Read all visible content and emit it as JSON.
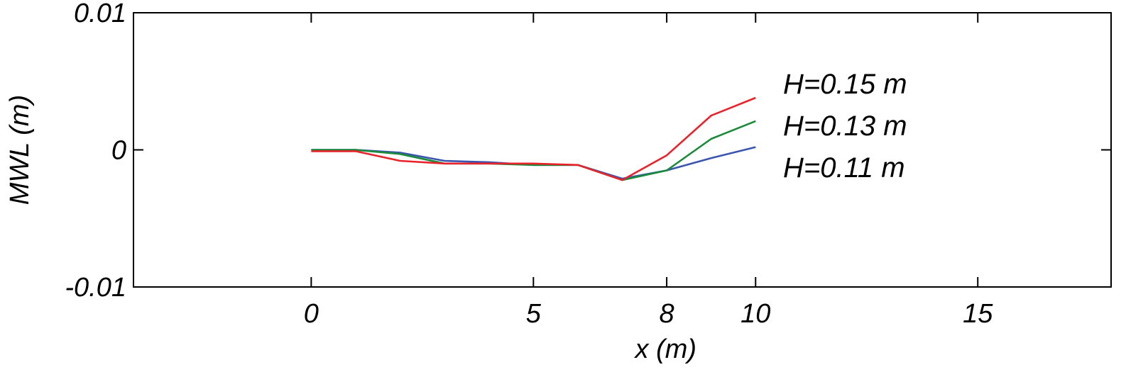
{
  "chart_data": {
    "type": "line",
    "title": "",
    "xlabel": "x (m)",
    "ylabel": "MWL (m)",
    "xlim": [
      -4,
      18
    ],
    "ylim": [
      -0.01,
      0.01
    ],
    "xticks": [
      0,
      5,
      8,
      10,
      15
    ],
    "xtick_labels": [
      "0",
      "5",
      "8",
      "10",
      "15"
    ],
    "yticks": [
      -0.01,
      0,
      0.01
    ],
    "ytick_labels": [
      "-0.01",
      "0",
      "0.01"
    ],
    "grid": false,
    "legend_placement": "right, inside plot",
    "series": [
      {
        "name": "H=0.15 m",
        "color": "#e8232a",
        "x": [
          0,
          1,
          2,
          3,
          4,
          5,
          6,
          7,
          8,
          9,
          10
        ],
        "y": [
          -0.0001,
          -0.0001,
          -0.0008,
          -0.001,
          -0.001,
          -0.001,
          -0.0011,
          -0.0022,
          -0.0004,
          0.0025,
          0.0038
        ]
      },
      {
        "name": "H=0.13 m",
        "color": "#1a8a3a",
        "x": [
          0,
          1,
          2,
          3,
          4,
          5,
          6,
          7,
          8,
          9,
          10
        ],
        "y": [
          0.0,
          0.0,
          -0.0003,
          -0.001,
          -0.001,
          -0.0011,
          -0.0011,
          -0.0022,
          -0.0015,
          0.0008,
          0.0021
        ]
      },
      {
        "name": "H=0.11 m",
        "color": "#3a55b0",
        "x": [
          0,
          1,
          2,
          3,
          4,
          5,
          6,
          7,
          8,
          9,
          10
        ],
        "y": [
          0.0,
          0.0,
          -0.0002,
          -0.0008,
          -0.0009,
          -0.0011,
          -0.0011,
          -0.0021,
          -0.0015,
          -0.0006,
          0.0002
        ]
      }
    ]
  }
}
